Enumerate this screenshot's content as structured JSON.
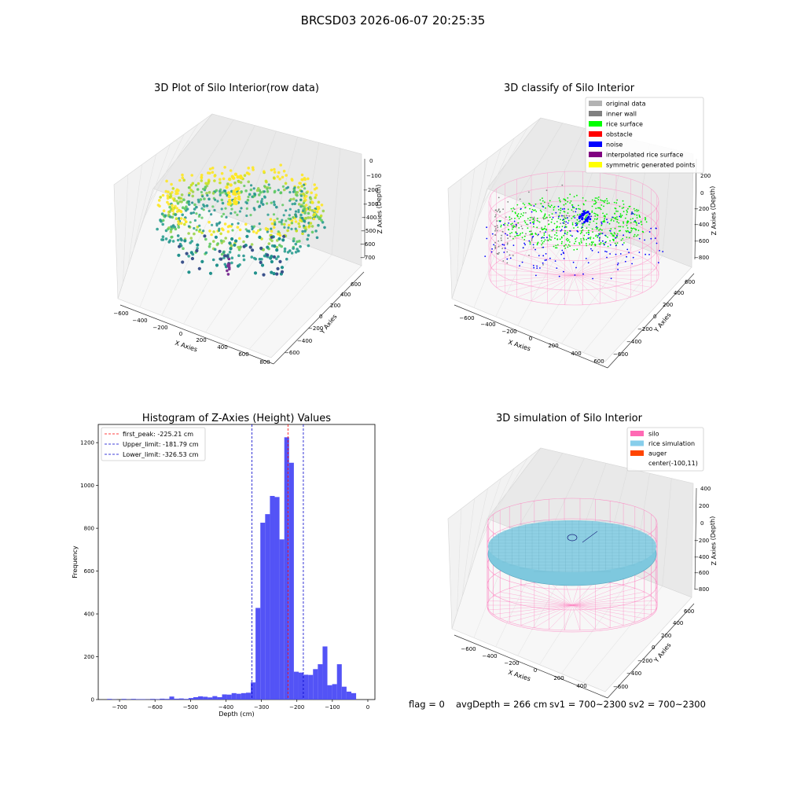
{
  "figure": {
    "suptitle": "BRCSD03 2026-06-07 20:25:35",
    "footer": {
      "flag": "flag = 0",
      "avg_depth": "avgDepth = 266 cm",
      "sv1": "sv1 = 700~2300",
      "sv2": "sv2 = 700~2300"
    }
  },
  "chart_data": [
    {
      "type": "scatter",
      "title": "3D Plot of Silo Interior(row data)",
      "xlabel": "X Axies",
      "ylabel": "Y Axies",
      "zlabel": "Z Axies (Depth)",
      "xticks": [
        "−600",
        "−400",
        "−200",
        "0",
        "200",
        "400",
        "600",
        "800"
      ],
      "yticks": [
        "−600",
        "−400",
        "−200",
        "0",
        "200",
        "400",
        "600"
      ],
      "zticks": [
        "0",
        "−100",
        "−200",
        "−300",
        "−400",
        "−500",
        "−600",
        "−700"
      ],
      "colormap": "viridis"
    },
    {
      "type": "scatter",
      "title": "3D classify of Silo Interior",
      "xlabel": "X Axies",
      "ylabel": "Y Axies",
      "zlabel": "Z Axies (Depth)",
      "xticks": [
        "−600",
        "−400",
        "−200",
        "0",
        "200",
        "400",
        "600"
      ],
      "yticks": [
        "−600",
        "−400",
        "−200",
        "0",
        "200",
        "400",
        "600"
      ],
      "zticks": [
        "200",
        "0",
        "−200",
        "−400",
        "−600",
        "−800"
      ],
      "legend": [
        {
          "label": "original data",
          "color": "#b3b3b3"
        },
        {
          "label": "inner wall",
          "color": "#808080"
        },
        {
          "label": "rice surface",
          "color": "#00ff00"
        },
        {
          "label": "obstacle",
          "color": "#ff0000"
        },
        {
          "label": "noise",
          "color": "#0000ff"
        },
        {
          "label": "interpolated rice surface",
          "color": "#800080"
        },
        {
          "label": "symmetric generated points",
          "color": "#ffff00"
        }
      ],
      "legend_position": "top-right"
    },
    {
      "type": "bar",
      "title": "Histogram of Z-Axies (Height) Values",
      "xlabel": "Depth (cm)",
      "ylabel": "Frequency",
      "xlim": [
        -760,
        20
      ],
      "ylim": [
        0,
        1285
      ],
      "xticks": [
        -700,
        -600,
        -500,
        -400,
        -300,
        -200,
        -100,
        0
      ],
      "xtick_labels": [
        "−700",
        "−600",
        "−500",
        "−400",
        "−300",
        "−200",
        "−100",
        "0"
      ],
      "yticks": [
        0,
        200,
        400,
        600,
        800,
        1000,
        1200
      ],
      "bin_start": -735,
      "bin_width": 13.5,
      "bar_color": "#4a4af5",
      "values": [
        3,
        1,
        0,
        3,
        1,
        3,
        2,
        2,
        1,
        3,
        2,
        4,
        3,
        14,
        4,
        5,
        3,
        7,
        11,
        15,
        13,
        10,
        16,
        11,
        24,
        23,
        30,
        27,
        30,
        32,
        80,
        428,
        826,
        866,
        951,
        946,
        748,
        1225,
        1106,
        130,
        126,
        116,
        115,
        142,
        165,
        248,
        67,
        72,
        165,
        60,
        37,
        30
      ],
      "lines": [
        {
          "name": "first_peak",
          "x": -225.21,
          "color": "#ff0000",
          "label": "first_peak: -225.21 cm"
        },
        {
          "name": "upper_limit",
          "x": -181.79,
          "color": "#0000cc",
          "label": "Upper_limit: -181.79 cm"
        },
        {
          "name": "lower_limit",
          "x": -326.53,
          "color": "#0000cc",
          "label": "Lower_limit: -326.53 cm"
        }
      ],
      "legend_position": "top-left"
    },
    {
      "type": "surface",
      "title": "3D simulation of Silo Interior",
      "xlabel": "X Axies",
      "ylabel": "Y Axies",
      "zlabel": "Z Axies (Depth)",
      "xticks": [
        "−600",
        "−400",
        "−200",
        "0",
        "200",
        "400"
      ],
      "yticks": [
        "−600",
        "−400",
        "−200",
        "0",
        "200",
        "400",
        "600"
      ],
      "zticks": [
        "400",
        "200",
        "0",
        "−200",
        "−400",
        "−600",
        "−800"
      ],
      "legend": [
        {
          "label": "silo",
          "color": "#ff69b4"
        },
        {
          "label": "rice simulation",
          "color": "#87ceeb"
        },
        {
          "label": "auger",
          "color": "#ff4500"
        },
        {
          "label": "center(-100,11)",
          "color": ""
        }
      ],
      "legend_position": "top-right"
    }
  ]
}
